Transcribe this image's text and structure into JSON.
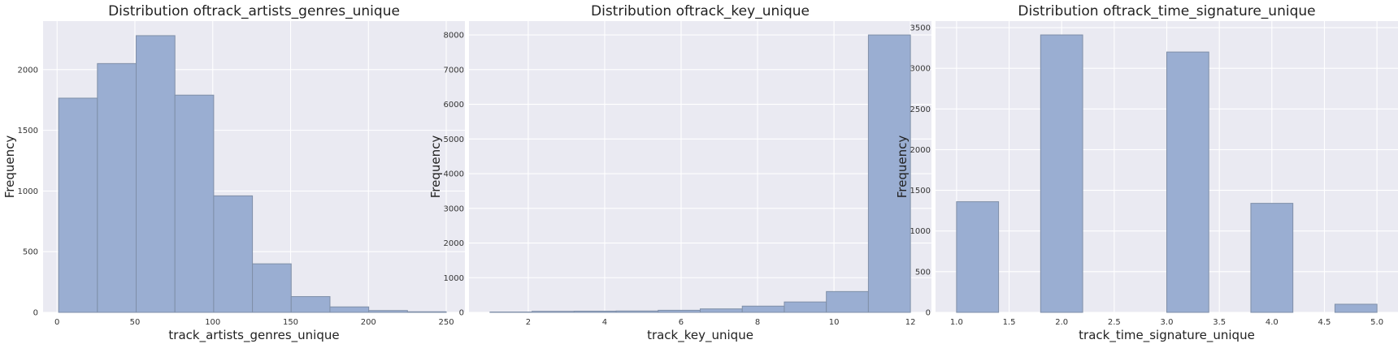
{
  "chart_data": [
    {
      "type": "bar",
      "title": "Distribution oftrack_artists_genres_unique",
      "xlabel": "track_artists_genres_unique",
      "ylabel": "Frequency",
      "bin_edges": [
        1,
        25.9,
        50.8,
        75.7,
        100.6,
        125.5,
        150.4,
        175.3,
        200.2,
        225.1,
        250
      ],
      "values": [
        1765,
        2050,
        2280,
        1790,
        960,
        400,
        130,
        45,
        15,
        5
      ],
      "xlim": [
        -9,
        262
      ],
      "ylim": [
        0,
        2400
      ],
      "xticks": [
        0,
        50,
        100,
        150,
        200,
        250
      ],
      "yticks": [
        0,
        500,
        1000,
        1500,
        2000
      ],
      "grid": true
    },
    {
      "type": "bar",
      "title": "Distribution oftrack_key_unique",
      "xlabel": "track_key_unique",
      "ylabel": "Frequency",
      "bin_edges": [
        1,
        2.1,
        3.2,
        4.3,
        5.4,
        6.5,
        7.6,
        8.7,
        9.8,
        10.9,
        12
      ],
      "values": [
        10,
        30,
        35,
        40,
        60,
        100,
        180,
        300,
        600,
        8000
      ],
      "xlim": [
        0.45,
        12.55
      ],
      "ylim": [
        0,
        8400
      ],
      "xticks": [
        2,
        4,
        6,
        8,
        10,
        12
      ],
      "yticks": [
        0,
        1000,
        2000,
        3000,
        4000,
        5000,
        6000,
        7000,
        8000
      ],
      "grid": true
    },
    {
      "type": "bar",
      "title": "Distribution oftrack_time_signature_unique",
      "xlabel": "track_time_signature_unique",
      "ylabel": "Frequency",
      "bin_edges": [
        1,
        1.4,
        1.8,
        2.2,
        2.6,
        3.0,
        3.4,
        3.8,
        4.2,
        4.6,
        5.0
      ],
      "values": [
        1360,
        0,
        3410,
        0,
        0,
        3200,
        0,
        1340,
        0,
        100
      ],
      "xlim": [
        0.8,
        5.2
      ],
      "ylim": [
        0,
        3580
      ],
      "xticks": [
        "1.0",
        "1.5",
        "2.0",
        "2.5",
        "3.0",
        "3.5",
        "4.0",
        "4.5",
        "5.0"
      ],
      "yticks": [
        0,
        500,
        1000,
        1500,
        2000,
        2500,
        3000,
        3500
      ],
      "grid": true
    }
  ]
}
